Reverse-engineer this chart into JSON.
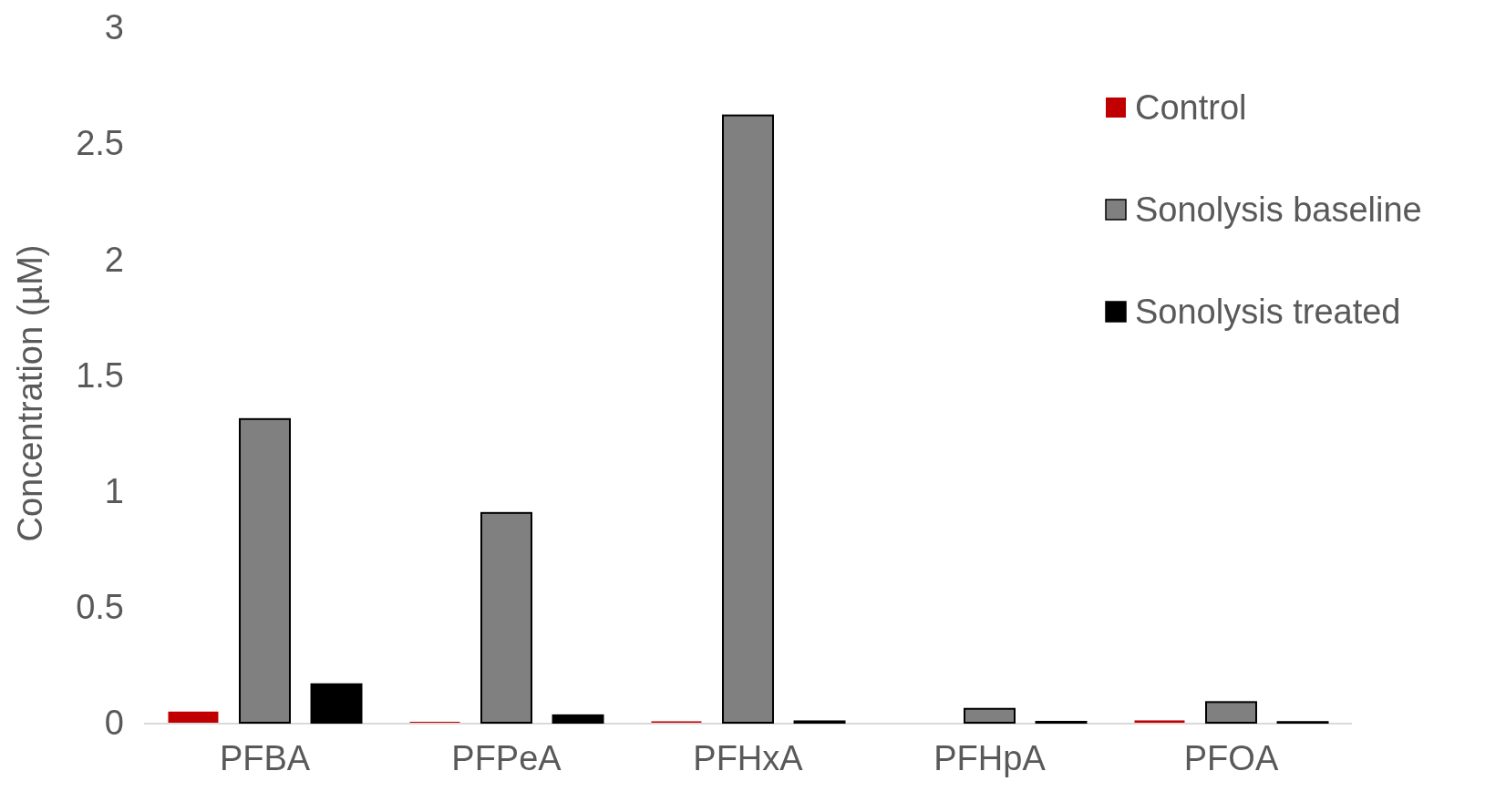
{
  "chart_data": {
    "type": "bar",
    "ylabel": "Concentration (µM)",
    "categories": [
      "PFBA",
      "PFPeA",
      "PFHxA",
      "PFHpA",
      "PFOA"
    ],
    "series": [
      {
        "name": "Control",
        "color": "#c00000",
        "values": [
          0.048,
          0.004,
          0.006,
          0,
          0.01
        ]
      },
      {
        "name": "Sonolysis baseline",
        "color": "#808080",
        "values": [
          1.31,
          0.905,
          2.62,
          0.06,
          0.089
        ]
      },
      {
        "name": "Sonolysis treated",
        "color": "#000000",
        "values": [
          0.166,
          0.032,
          0.006,
          0.004,
          0.003
        ]
      }
    ],
    "ylim": [
      0,
      3
    ],
    "yticks": [
      0,
      0.5,
      1,
      1.5,
      2,
      2.5,
      3
    ],
    "grid": false,
    "legend": "top right"
  }
}
